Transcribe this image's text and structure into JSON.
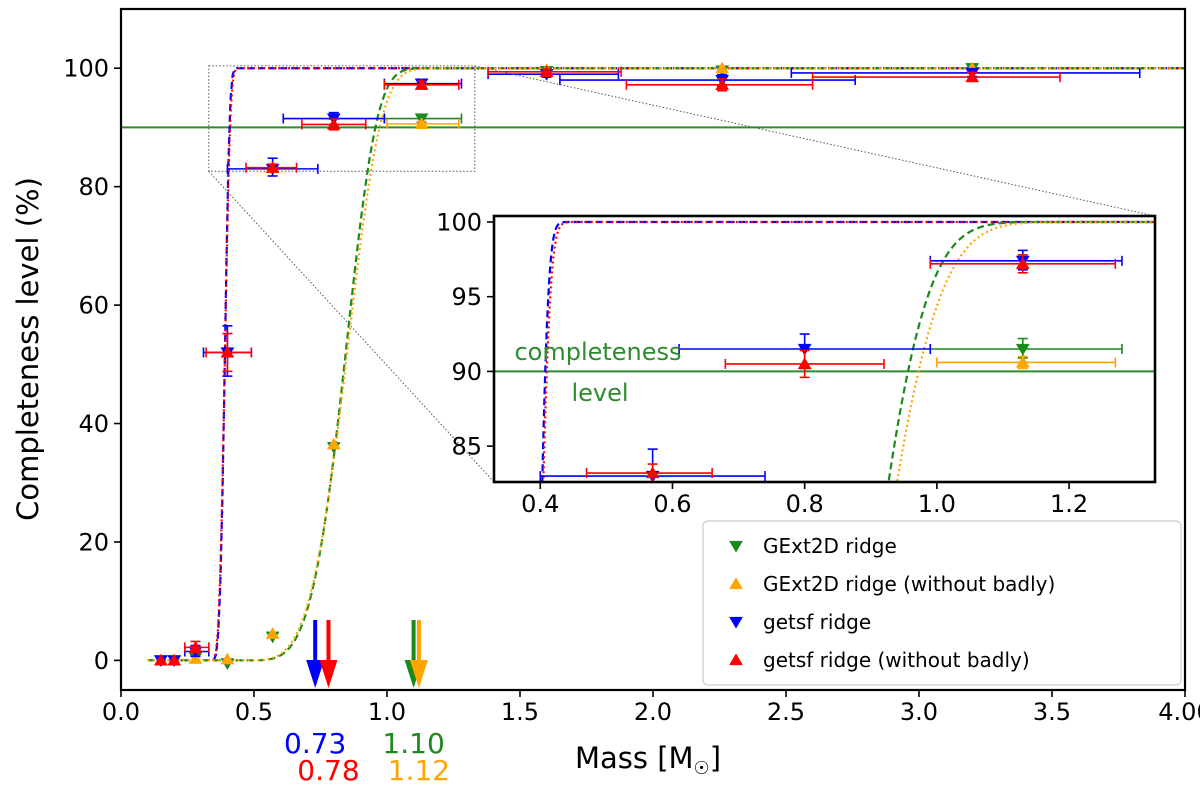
{
  "colors": {
    "green": "#1a8a1a",
    "orange": "#ffa500",
    "blue": "#0000ff",
    "red": "#ff0000",
    "threshold": "#2e8b2e"
  },
  "chart_data": {
    "type": "scatter",
    "xlabel": "Mass [M",
    "xlabel_suffix": "]",
    "ylabel": "Completeness level (%)",
    "xlim": [
      0.0,
      4.0
    ],
    "ylim": [
      -5,
      110
    ],
    "xticks": [
      0.0,
      0.5,
      1.0,
      1.5,
      2.0,
      2.5,
      3.0,
      3.5,
      4.0
    ],
    "xtick_labels": [
      "0.0",
      "0.5",
      "1.0",
      "1.5",
      "2.0",
      "2.5",
      "3.0",
      "3.5",
      "4.00"
    ],
    "yticks": [
      0,
      20,
      40,
      60,
      80,
      100
    ],
    "ytick_labels": [
      "0",
      "20",
      "40",
      "60",
      "80",
      "100"
    ],
    "threshold": 90,
    "legend_position": "lower-right",
    "series": [
      {
        "name": "GExt2D ridge",
        "color_key": "green",
        "marker": "triangle-down",
        "points": [
          {
            "x": 0.15,
            "y": 0.0
          },
          {
            "x": 0.2,
            "y": 0.0
          },
          {
            "x": 0.28,
            "y": 0.5
          },
          {
            "x": 0.4,
            "y": -0.5
          },
          {
            "x": 0.57,
            "y": 4.0
          },
          {
            "x": 0.8,
            "y": 36.0
          },
          {
            "x": 1.13,
            "y": 91.5,
            "xerr": [
              0.99,
              1.28
            ],
            "yerr": [
              90.9,
              92.2
            ]
          },
          {
            "x": 1.6,
            "y": 99.5
          },
          {
            "x": 2.26,
            "y": 99.6
          },
          {
            "x": 3.2,
            "y": 100.0
          }
        ]
      },
      {
        "name": "GExt2D ridge (without badly)",
        "color_key": "orange",
        "marker": "triangle-up",
        "points": [
          {
            "x": 0.15,
            "y": 0.0
          },
          {
            "x": 0.2,
            "y": 0.0
          },
          {
            "x": 0.28,
            "y": 0.3
          },
          {
            "x": 0.4,
            "y": 0.2
          },
          {
            "x": 0.57,
            "y": 4.5
          },
          {
            "x": 0.8,
            "y": 36.5
          },
          {
            "x": 1.13,
            "y": 90.6,
            "xerr": [
              1.0,
              1.27
            ],
            "yerr": [
              90.2,
              91.0
            ]
          },
          {
            "x": 1.6,
            "y": 99.7
          },
          {
            "x": 2.26,
            "y": 100.0
          },
          {
            "x": 3.2,
            "y": 100.0
          }
        ]
      },
      {
        "name": "getsf ridge",
        "color_key": "blue",
        "marker": "triangle-down",
        "points": [
          {
            "x": 0.15,
            "y": 0.0
          },
          {
            "x": 0.2,
            "y": 0.0
          },
          {
            "x": 0.28,
            "y": 1.5,
            "xerr": [
              0.24,
              0.33
            ],
            "yerr": [
              0.7,
              2.5
            ]
          },
          {
            "x": 0.4,
            "y": 52.0,
            "xerr": [
              0.31,
              0.49
            ],
            "yerr": [
              48.0,
              56.5
            ]
          },
          {
            "x": 0.57,
            "y": 83.0,
            "xerr": [
              0.4,
              0.74
            ],
            "yerr": [
              81.8,
              84.8
            ]
          },
          {
            "x": 0.8,
            "y": 91.5,
            "xerr": [
              0.61,
              0.99
            ],
            "yerr": [
              90.2,
              92.5
            ]
          },
          {
            "x": 1.13,
            "y": 97.4,
            "xerr": [
              0.99,
              1.28
            ],
            "yerr": [
              96.8,
              98.1
            ]
          },
          {
            "x": 1.6,
            "y": 99.0,
            "xerr": [
              1.38,
              1.87
            ],
            "yerr": [
              98.5,
              99.5
            ]
          },
          {
            "x": 2.26,
            "y": 98.0,
            "xerr": [
              1.65,
              2.76
            ],
            "yerr": [
              97.0,
              98.9
            ]
          },
          {
            "x": 3.2,
            "y": 99.2,
            "xerr": [
              2.52,
              3.83
            ],
            "yerr": [
              98.6,
              99.8
            ]
          }
        ]
      },
      {
        "name": "getsf ridge (without badly)",
        "color_key": "red",
        "marker": "triangle-up",
        "points": [
          {
            "x": 0.15,
            "y": 0.0
          },
          {
            "x": 0.2,
            "y": 0.0
          },
          {
            "x": 0.28,
            "y": 2.2,
            "xerr": [
              0.24,
              0.33
            ],
            "yerr": [
              1.3,
              3.2
            ]
          },
          {
            "x": 0.4,
            "y": 52.0,
            "xerr": [
              0.32,
              0.49
            ],
            "yerr": [
              48.8,
              55.2
            ]
          },
          {
            "x": 0.57,
            "y": 83.2,
            "xerr": [
              0.47,
              0.66
            ],
            "yerr": [
              82.6,
              83.8
            ]
          },
          {
            "x": 0.8,
            "y": 90.5,
            "xerr": [
              0.68,
              0.92
            ],
            "yerr": [
              89.6,
              91.4
            ]
          },
          {
            "x": 1.13,
            "y": 97.2,
            "xerr": [
              0.99,
              1.27
            ],
            "yerr": [
              96.6,
              97.8
            ]
          },
          {
            "x": 1.6,
            "y": 99.4,
            "xerr": [
              1.38,
              1.88
            ],
            "yerr": [
              99.0,
              99.8
            ]
          },
          {
            "x": 2.26,
            "y": 97.2,
            "xerr": [
              1.9,
              2.6
            ],
            "yerr": [
              96.2,
              98.2
            ]
          },
          {
            "x": 3.2,
            "y": 98.5,
            "xerr": [
              2.6,
              3.53
            ],
            "yerr": [
              97.8,
              99.3
            ]
          }
        ]
      }
    ],
    "curves": [
      {
        "color_key": "blue",
        "style": "dashed",
        "k": 4.0,
        "x0": 0.34,
        "x50": 0.39
      },
      {
        "color_key": "red",
        "style": "dotted",
        "k": 3.6,
        "x0": 0.34,
        "x50": 0.39
      },
      {
        "color_key": "green",
        "style": "dashed",
        "k": 4.6,
        "x0": 0.45,
        "x50": 0.84
      },
      {
        "color_key": "orange",
        "style": "dotted",
        "k": 4.3,
        "x0": 0.45,
        "x50": 0.845
      }
    ],
    "arrows": [
      {
        "x": 0.73,
        "color_key": "blue"
      },
      {
        "x": 0.78,
        "color_key": "red"
      },
      {
        "x": 1.1,
        "color_key": "green"
      },
      {
        "x": 1.12,
        "color_key": "orange"
      }
    ],
    "mass_labels": [
      {
        "text": "0.73",
        "x": 0.73,
        "row": 1,
        "color_key": "blue"
      },
      {
        "text": "0.78",
        "x": 0.78,
        "row": 2,
        "color_key": "red"
      },
      {
        "text": "1.10",
        "x": 1.1,
        "row": 1,
        "color_key": "green"
      },
      {
        "text": "1.12",
        "x": 1.12,
        "row": 2,
        "color_key": "orange"
      }
    ],
    "inset": {
      "xlim": [
        0.33,
        1.33
      ],
      "ylim": [
        82.6,
        100.4
      ],
      "xticks": [
        0.4,
        0.6,
        0.8,
        1.0,
        1.2
      ],
      "xtick_labels": [
        "0.4",
        "0.6",
        "0.8",
        "1.0",
        "1.2"
      ],
      "yticks": [
        85,
        90,
        95,
        100
      ],
      "ytick_labels": [
        "85",
        "90",
        "95",
        "100"
      ],
      "annotation_line1": "completeness",
      "annotation_line2": "level"
    }
  }
}
